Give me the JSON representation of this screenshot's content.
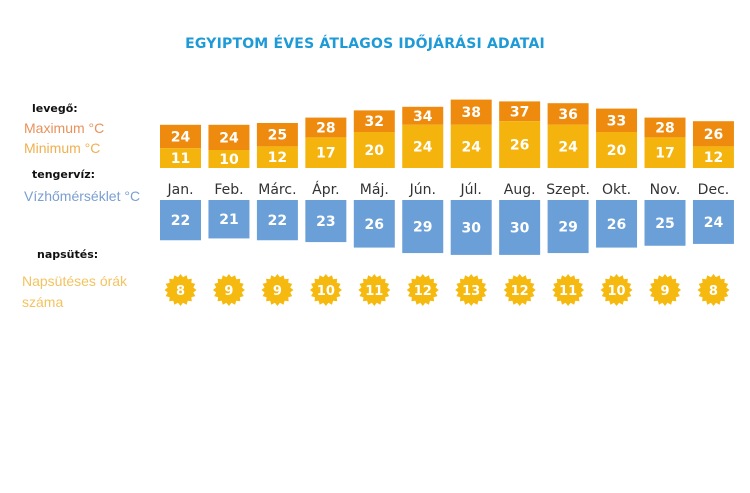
{
  "chart_data": {
    "type": "bar",
    "title": "EGYIPTOM ÉVES ÁTLAGOS IDŐJÁRÁSI ADATAI",
    "categories": [
      "Jan.",
      "Feb.",
      "Márc.",
      "Ápr.",
      "Máj.",
      "Jún.",
      "Júl.",
      "Aug.",
      "Szept.",
      "Okt.",
      "Nov.",
      "Dec."
    ],
    "series": [
      {
        "name": "Maximum °C",
        "values": [
          24,
          24,
          25,
          28,
          32,
          34,
          38,
          37,
          36,
          33,
          28,
          26
        ]
      },
      {
        "name": "Minimum °C",
        "values": [
          11,
          10,
          12,
          17,
          20,
          24,
          24,
          26,
          24,
          20,
          17,
          12
        ]
      },
      {
        "name": "Vízhőmérséklet °C",
        "values": [
          22,
          21,
          22,
          23,
          26,
          29,
          30,
          30,
          29,
          26,
          25,
          24
        ]
      },
      {
        "name": "Napsütéses órák száma",
        "values": [
          8,
          9,
          9,
          10,
          11,
          12,
          13,
          12,
          11,
          10,
          9,
          8
        ]
      }
    ],
    "colors": {
      "max": "#ee8a0e",
      "min": "#f4b40d",
      "water": "#6a9fd8",
      "sun": "#f5b90f",
      "title": "#1e9bd7"
    }
  },
  "labels": {
    "air_heading": "levegő:",
    "max": "Maximum  °C",
    "min": "Minimum  °C",
    "sea_heading": "tengervíz:",
    "water": "Vízhőmérséklet °C",
    "sun_heading": "napsütés:",
    "sun_line1": "Napsütéses órák",
    "sun_line2": "száma"
  }
}
